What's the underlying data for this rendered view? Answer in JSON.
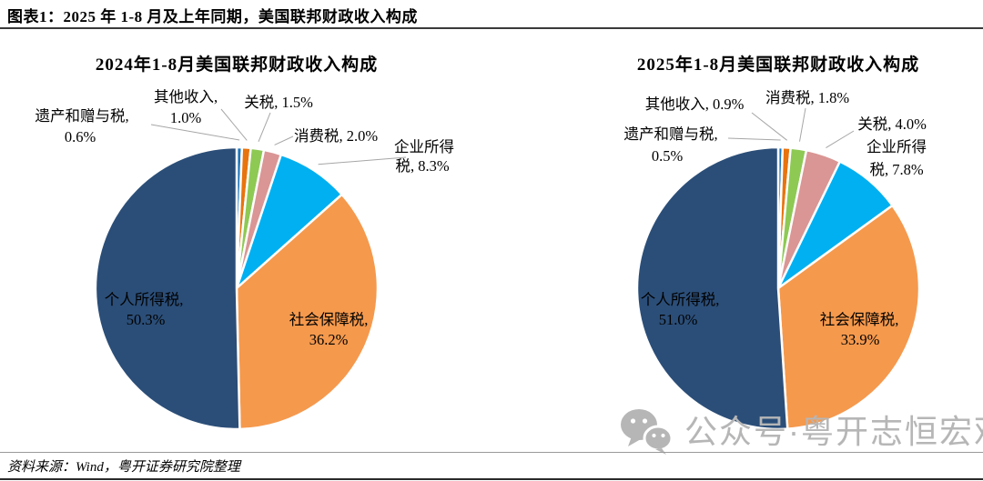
{
  "figure": {
    "caption": "图表1：2025 年 1-8 月及上年同期，美国联邦财政收入构成",
    "source": "资料来源：Wind，粤开证券研究院整理",
    "watermark": "公众号·粤开志恒宏观",
    "watermark_color": "#b6b6b6",
    "leader_line_color": "#a6a6a6"
  },
  "chart_data": [
    {
      "type": "pie",
      "title": "2024年1-8月美国联邦财政收入构成",
      "unit": "%",
      "start_angle_deg": 0,
      "direction": "clockwise",
      "slices": [
        {
          "label": "遗产和赠与税",
          "value": 0.6,
          "color": "#1B75BC"
        },
        {
          "label": "其他收入",
          "value": 1.0,
          "color": "#E8740E"
        },
        {
          "label": "关税",
          "value": 1.5,
          "color": "#8EC954"
        },
        {
          "label": "消费税",
          "value": 2.0,
          "color": "#D99694"
        },
        {
          "label": "企业所得税",
          "value": 8.3,
          "color": "#00B0F0"
        },
        {
          "label": "社会保障税",
          "value": 36.2,
          "color": "#F5994D"
        },
        {
          "label": "个人所得税",
          "value": 50.3,
          "color": "#2B4E78"
        }
      ]
    },
    {
      "type": "pie",
      "title": "2025年1-8月美国联邦财政收入构成",
      "unit": "%",
      "start_angle_deg": 0,
      "direction": "clockwise",
      "slices": [
        {
          "label": "遗产和赠与税",
          "value": 0.5,
          "color": "#1B75BC"
        },
        {
          "label": "其他收入",
          "value": 0.9,
          "color": "#E8740E"
        },
        {
          "label": "消费税",
          "value": 1.8,
          "color": "#8EC954"
        },
        {
          "label": "关税",
          "value": 4.0,
          "color": "#D99694"
        },
        {
          "label": "企业所得税",
          "value": 7.8,
          "color": "#00B0F0"
        },
        {
          "label": "社会保障税",
          "value": 33.9,
          "color": "#F5994D"
        },
        {
          "label": "个人所得税",
          "value": 51.0,
          "color": "#2B4E78"
        }
      ]
    }
  ]
}
